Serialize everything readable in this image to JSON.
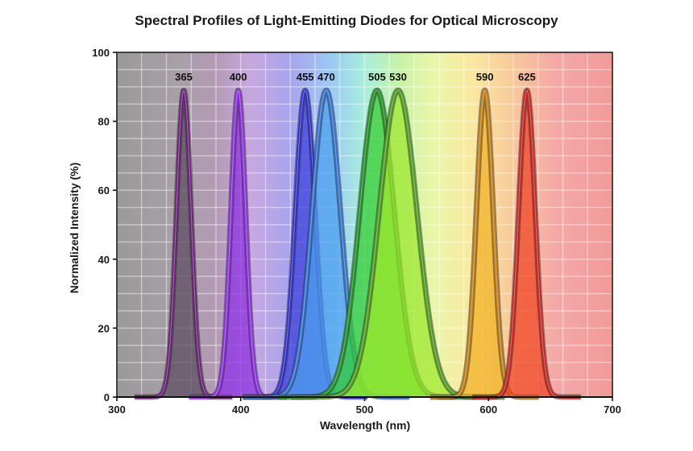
{
  "chart_data": {
    "type": "line",
    "title": "Spectral Profiles of Light-Emitting Diodes for Optical Microscopy",
    "xlabel": "Wavelength (nm)",
    "ylabel": "Normalized Intensity (%)",
    "xlim": [
      300,
      700
    ],
    "ylim": [
      0,
      100
    ],
    "xticks": [
      300,
      400,
      500,
      600,
      700
    ],
    "yticks": [
      0,
      20,
      40,
      60,
      80,
      100
    ],
    "grid": true,
    "peak_height": 89,
    "series": [
      {
        "name": "365",
        "peak": 354,
        "fwhm": 14,
        "color": "#6a1b7a",
        "fill": "#5a4a5e"
      },
      {
        "name": "400",
        "peak": 398,
        "fwhm": 14,
        "color": "#8a2be2",
        "fill": "#8a2be2"
      },
      {
        "name": "455",
        "peak": 452,
        "fwhm": 19,
        "color": "#2b2bcc",
        "fill": "#3a3adc"
      },
      {
        "name": "470",
        "peak": 469,
        "fwhm": 27,
        "color": "#2f6fd0",
        "fill": "#4aa0ee"
      },
      {
        "name": "505",
        "peak": 510,
        "fwhm": 33,
        "color": "#1e8f1e",
        "fill": "#2ecc2e"
      },
      {
        "name": "530",
        "peak": 527,
        "fwhm": 36,
        "color": "#4a9a1e",
        "fill": "#9ee82a"
      },
      {
        "name": "590",
        "peak": 597,
        "fwhm": 16,
        "color": "#c07a10",
        "fill": "#f0b020"
      },
      {
        "name": "625",
        "peak": 631,
        "fwhm": 16,
        "color": "#c81e1e",
        "fill": "#f04020"
      }
    ]
  }
}
